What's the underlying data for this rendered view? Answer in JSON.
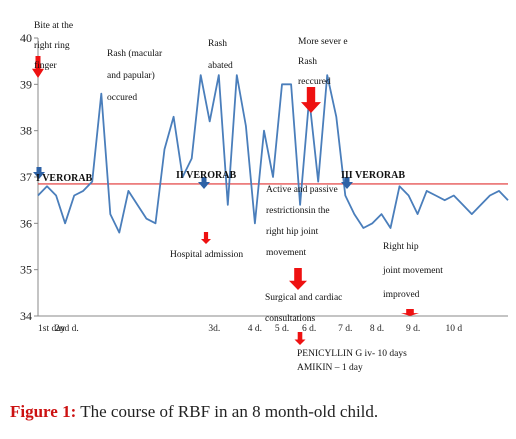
{
  "caption": {
    "label": "Figure 1:",
    "text": "The course of RBF in an 8 month-old child."
  },
  "colors": {
    "series": "#4a7ebb",
    "reference_line": "#e03030",
    "arrow_red": "#ee1111",
    "arrow_blue": "#2e62a6",
    "caption_label": "#cc1111"
  },
  "chart_data": {
    "type": "line",
    "title": "",
    "xlabel": "",
    "ylabel": "",
    "ylim": [
      34,
      40
    ],
    "yticks": [
      34,
      35,
      36,
      37,
      38,
      39,
      40
    ],
    "grid": false,
    "reference_line": {
      "value": 36.85
    },
    "x_tick_labels": [
      {
        "label": "1st  day",
        "x": 0
      },
      {
        "label": "2nd d.",
        "x": 3.2
      },
      {
        "label": "3d.",
        "x": 19.5
      },
      {
        "label": "4 d.",
        "x": 24
      },
      {
        "label": "5 d.",
        "x": 27
      },
      {
        "label": "6 d.",
        "x": 30
      },
      {
        "label": "7 d.",
        "x": 34
      },
      {
        "label": "8 d.",
        "x": 37.5
      },
      {
        "label": "9 d.",
        "x": 41.5
      },
      {
        "label": "10 d",
        "x": 46
      }
    ],
    "series": [
      {
        "values": [
          36.6,
          36.8,
          36.6,
          36.0,
          36.6,
          36.7,
          36.9,
          38.8,
          36.2,
          35.8,
          36.7,
          36.4,
          36.1,
          36.0,
          37.6,
          38.3,
          37.0,
          37.4,
          39.2,
          38.2,
          39.2,
          36.4,
          39.2,
          38.1,
          36.0,
          38.0,
          37.0,
          39.0,
          39.0,
          36.4,
          38.7,
          36.9,
          39.2,
          38.3,
          36.6,
          36.2,
          35.9,
          36.0,
          36.2,
          35.9,
          36.8,
          36.6,
          36.2,
          36.7,
          36.6,
          36.5,
          36.6,
          36.4,
          36.2,
          36.4,
          36.6,
          36.7,
          36.5
        ]
      }
    ],
    "annotations": [
      {
        "text": "Bite at the right ring finger",
        "lines": [
          "Bite at the",
          "right ring",
          "finger"
        ],
        "arrow": "red-down"
      },
      {
        "text": "Rash (macular and papular) occured",
        "lines": [
          "Rash (macular",
          "and papular)",
          "occured"
        ]
      },
      {
        "text": "Rash abated",
        "lines": [
          "Rash",
          "abated"
        ]
      },
      {
        "text": "More sever e Rash reccured",
        "lines": [
          "More sever e",
          "Rash",
          "reccured"
        ],
        "arrow": "red-down"
      },
      {
        "text": "I VERORAB",
        "lines": [
          "I VERORAB"
        ],
        "arrow": "blue-down"
      },
      {
        "text": "II VERORAB",
        "lines": [
          "II VERORAB"
        ],
        "arrow": "blue-down"
      },
      {
        "text": "III VERORAB",
        "lines": [
          "III VERORAB"
        ],
        "arrow": "blue-down"
      },
      {
        "text": "Hospital admission",
        "lines": [
          "Hospital admission"
        ],
        "arrow": "red-down"
      },
      {
        "text": "Active and passive restrictions in the right hip joint movement",
        "lines": [
          "Active and passive",
          "restrictionsin the",
          "right  hip joint",
          "movement"
        ],
        "arrow": "red-down"
      },
      {
        "text": "Surgical and cardiac consultations",
        "lines": [
          "Surgical and cardiac",
          "consultations"
        ],
        "arrow": "red-down"
      },
      {
        "text": "Right hip joint movement improved",
        "lines": [
          "Right hip",
          "joint movement",
          "improved"
        ],
        "arrow": "red-down"
      },
      {
        "text": "PENICYLLIN  G  iv- 10 days",
        "lines": [
          "PENICYLLIN  G  iv- 10 days"
        ],
        "arrow": "red-down"
      },
      {
        "text": "AMIKIN – 1 day",
        "lines": [
          "AMIKIN – 1 day"
        ]
      }
    ]
  }
}
